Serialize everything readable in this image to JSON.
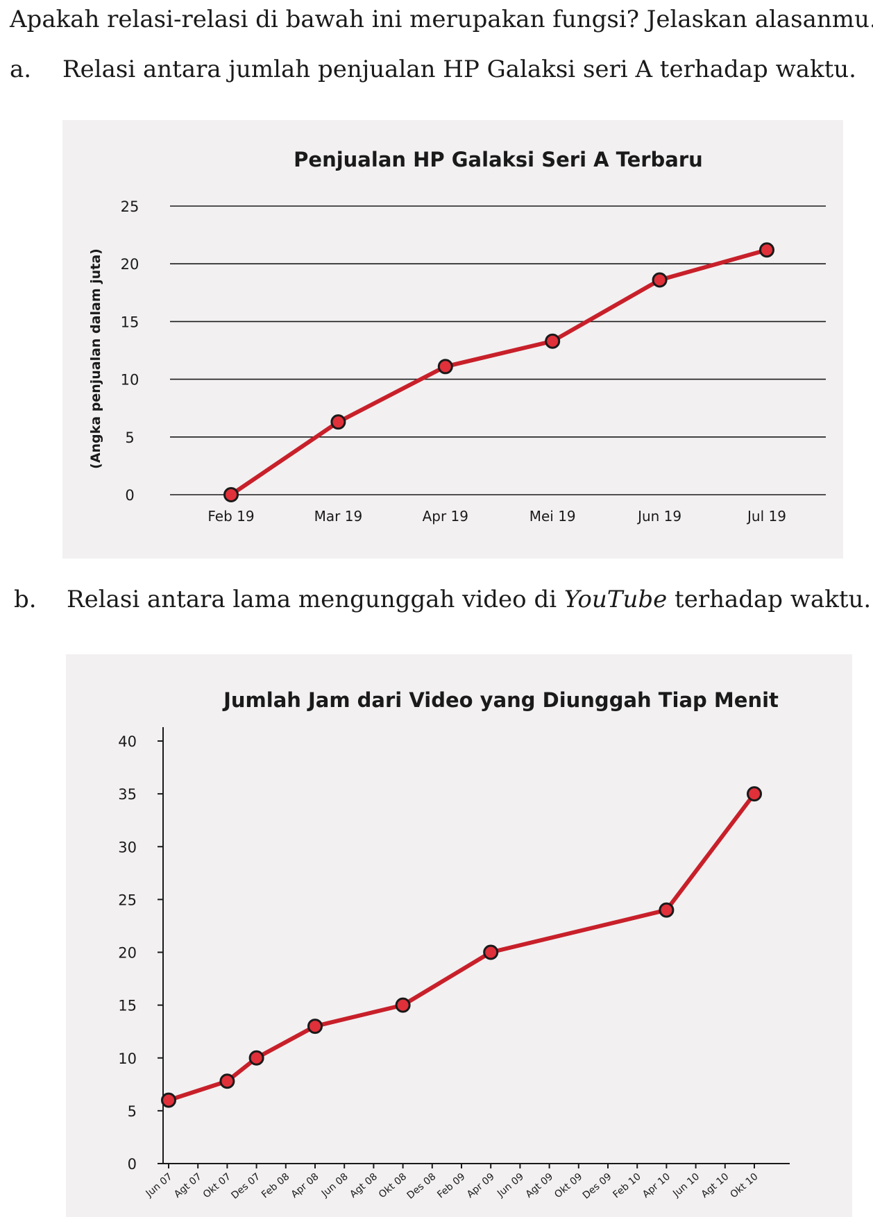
{
  "question": {
    "intro": "Apakah relasi-relasi di bawah ini merupakan fungsi? Jelaskan alasanmu.",
    "items": [
      {
        "letter": "a.",
        "text": "Relasi antara jumlah penjualan HP Galaksi seri A terhadap waktu."
      },
      {
        "letter": "b.",
        "text_before": "Relasi antara lama mengunggah video di ",
        "text_italic": "YouTube",
        "text_after": " terhadap waktu."
      }
    ]
  },
  "colors": {
    "chart_bg": "#f2f0f1",
    "line": "#c8202a",
    "marker_fill": "#e0303a",
    "marker_stroke": "#1a1a1a",
    "grid": "#1a1a1a"
  },
  "chart_data": [
    {
      "type": "line",
      "title": "Penjualan HP Galaksi Seri A Terbaru",
      "xlabel": "",
      "ylabel": "(Angka penjualan dalam juta)",
      "categories": [
        "Feb 19",
        "Mar 19",
        "Apr 19",
        "Mei 19",
        "Jun 19",
        "Jul 19"
      ],
      "series": [
        {
          "values": [
            0,
            6.3,
            11.1,
            13.3,
            18.6,
            21.2
          ]
        }
      ],
      "ylim": [
        0,
        25
      ],
      "yticks": [
        0,
        5,
        10,
        15,
        20,
        25
      ],
      "grid": true
    },
    {
      "type": "line",
      "title": "Jumlah Jam dari Video yang Diunggah Tiap Menit",
      "xlabel": "",
      "ylabel": "",
      "categories": [
        "Jun 07",
        "Agt 07",
        "Okt 07",
        "Des 07",
        "Feb 08",
        "Apr 08",
        "Jun 08",
        "Agt 08",
        "Okt 08",
        "Des 08",
        "Feb 09",
        "Apr 09",
        "Jun 09",
        "Agt 09",
        "Okt 09",
        "Des 09",
        "Feb 10",
        "Apr 10",
        "Jun 10",
        "Agt 10",
        "Okt 10"
      ],
      "points": [
        {
          "x": "Jun 07",
          "y": 6
        },
        {
          "x": "Okt 07",
          "y": 7.8
        },
        {
          "x": "Des 07",
          "y": 10
        },
        {
          "x": "Apr 08",
          "y": 13
        },
        {
          "x": "Okt 08",
          "y": 15
        },
        {
          "x": "Apr 09",
          "y": 20
        },
        {
          "x": "Apr 10",
          "y": 24
        },
        {
          "x": "Okt 10",
          "y": 35
        }
      ],
      "ylim": [
        0,
        40
      ],
      "yticks": [
        0,
        5,
        10,
        15,
        20,
        25,
        30,
        35,
        40
      ],
      "grid": false
    }
  ]
}
